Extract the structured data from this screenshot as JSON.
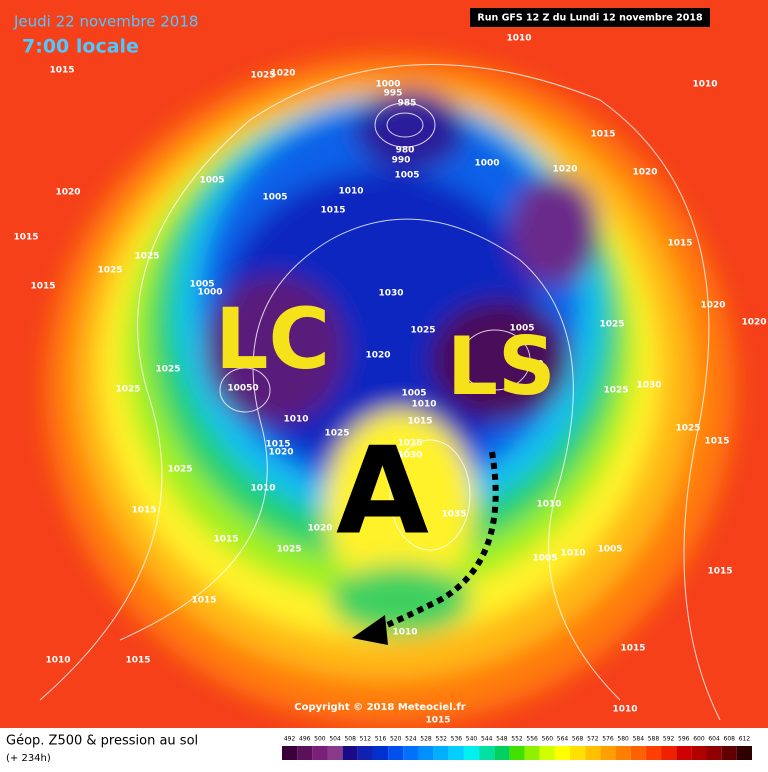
{
  "header": {
    "date": "Jeudi 22 novembre 2018",
    "time": "7:00 locale",
    "run": "Run GFS 12 Z du Lundi 12 novembre 2018"
  },
  "annotations": {
    "cold_low": "LC",
    "surface_low": "LS",
    "high": "A"
  },
  "copyright": "Copyright © 2018 Meteociel.fr",
  "footer": {
    "title": "Géop. Z500 & pression au sol",
    "lead": "(+ 234h)"
  },
  "isobar_labels": [
    "1010",
    "1015",
    "1025",
    "1020",
    "1000",
    "995",
    "985",
    "980",
    "990",
    "1000",
    "1020",
    "1015",
    "1010",
    "1020",
    "1005",
    "1005",
    "1010",
    "1005",
    "1015",
    "1020",
    "1015",
    "1025",
    "1025",
    "1015",
    "1005",
    "1000",
    "1030",
    "1025",
    "1020",
    "1005",
    "1000",
    "1025",
    "1015",
    "1020",
    "1020",
    "1030",
    "1025",
    "1025",
    "1015",
    "1025",
    "1025",
    "10050",
    "1010",
    "1015",
    "1020",
    "1025",
    "1005",
    "1010",
    "1015",
    "1025",
    "1030",
    "1010",
    "1025",
    "1015",
    "1020",
    "1015",
    "1025",
    "1035",
    "1010",
    "1005",
    "1010",
    "1005",
    "1015",
    "1015",
    "1010",
    "1015",
    "1010",
    "1015",
    "1010",
    "1015"
  ],
  "scale": {
    "labels": [
      492,
      496,
      500,
      504,
      508,
      512,
      516,
      520,
      524,
      528,
      532,
      536,
      540,
      544,
      548,
      552,
      556,
      560,
      564,
      568,
      572,
      576,
      580,
      584,
      588,
      592,
      596,
      600,
      604,
      608,
      612
    ],
    "colors": [
      "#3a003a",
      "#5a105a",
      "#7a207a",
      "#8a3a8a",
      "#1a0a8a",
      "#1020b0",
      "#0030d0",
      "#0050f0",
      "#0070ff",
      "#0090ff",
      "#00b0ff",
      "#00d0ff",
      "#00f0f0",
      "#00e0a0",
      "#00d060",
      "#40e000",
      "#90f000",
      "#d0ff00",
      "#ffff00",
      "#ffe000",
      "#ffc000",
      "#ffa000",
      "#ff8000",
      "#ff6000",
      "#ff4000",
      "#f02000",
      "#d00000",
      "#b00000",
      "#900000",
      "#600000",
      "#300000"
    ]
  }
}
